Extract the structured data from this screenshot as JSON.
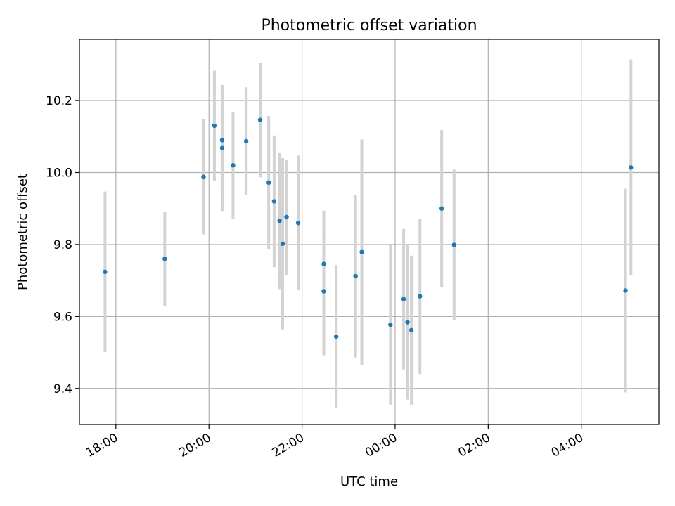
{
  "chart_data": {
    "type": "scatter",
    "title": "Photometric offset variation",
    "xlabel": "UTC time",
    "ylabel": "Photometric offset",
    "x_type": "time",
    "xlim": [
      "17:13",
      "05:40"
    ],
    "ylim": [
      9.3,
      10.37
    ],
    "grid": true,
    "xticks": [
      "18:00",
      "20:00",
      "22:00",
      "00:00",
      "02:00",
      "04:00"
    ],
    "yticks": [
      9.4,
      9.6,
      9.8,
      10.0,
      10.2
    ],
    "ytick_labels": [
      "9.4",
      "9.6",
      "9.8",
      "10.0",
      "10.2"
    ],
    "colors": {
      "points": "#1f77b4",
      "errorbars": "#d3d3d3",
      "grid": "#b0b0b0"
    },
    "points": [
      {
        "x": "17:46",
        "y": 9.724,
        "err": 0.223
      },
      {
        "x": "19:03",
        "y": 9.76,
        "err": 0.13
      },
      {
        "x": "19:53",
        "y": 9.988,
        "err": 0.16
      },
      {
        "x": "20:07",
        "y": 10.13,
        "err": 0.153
      },
      {
        "x": "20:17",
        "y": 10.09,
        "err": 0.153
      },
      {
        "x": "20:17",
        "y": 10.068,
        "err": 0.175
      },
      {
        "x": "20:31",
        "y": 10.02,
        "err": 0.148
      },
      {
        "x": "20:48",
        "y": 10.087,
        "err": 0.15
      },
      {
        "x": "21:06",
        "y": 10.146,
        "err": 0.159
      },
      {
        "x": "21:17",
        "y": 9.972,
        "err": 0.185
      },
      {
        "x": "21:24",
        "y": 9.92,
        "err": 0.183
      },
      {
        "x": "21:31",
        "y": 9.866,
        "err": 0.19
      },
      {
        "x": "21:35",
        "y": 9.802,
        "err": 0.238
      },
      {
        "x": "21:40",
        "y": 9.876,
        "err": 0.16
      },
      {
        "x": "21:55",
        "y": 9.86,
        "err": 0.187
      },
      {
        "x": "22:28",
        "y": 9.746,
        "err": 0.148
      },
      {
        "x": "22:28",
        "y": 9.67,
        "err": 0.178
      },
      {
        "x": "22:44",
        "y": 9.544,
        "err": 0.199
      },
      {
        "x": "23:09",
        "y": 9.712,
        "err": 0.226
      },
      {
        "x": "23:17",
        "y": 9.779,
        "err": 0.313
      },
      {
        "x": "23:54",
        "y": 9.577,
        "err": 0.222
      },
      {
        "x": "00:11",
        "y": 9.648,
        "err": 0.195
      },
      {
        "x": "00:16",
        "y": 9.584,
        "err": 0.215
      },
      {
        "x": "00:21",
        "y": 9.562,
        "err": 0.207
      },
      {
        "x": "00:32",
        "y": 9.656,
        "err": 0.216
      },
      {
        "x": "01:00",
        "y": 9.9,
        "err": 0.218
      },
      {
        "x": "01:16",
        "y": 9.799,
        "err": 0.209
      },
      {
        "x": "04:57",
        "y": 9.672,
        "err": 0.283
      },
      {
        "x": "05:04",
        "y": 10.014,
        "err": 0.3
      }
    ]
  }
}
